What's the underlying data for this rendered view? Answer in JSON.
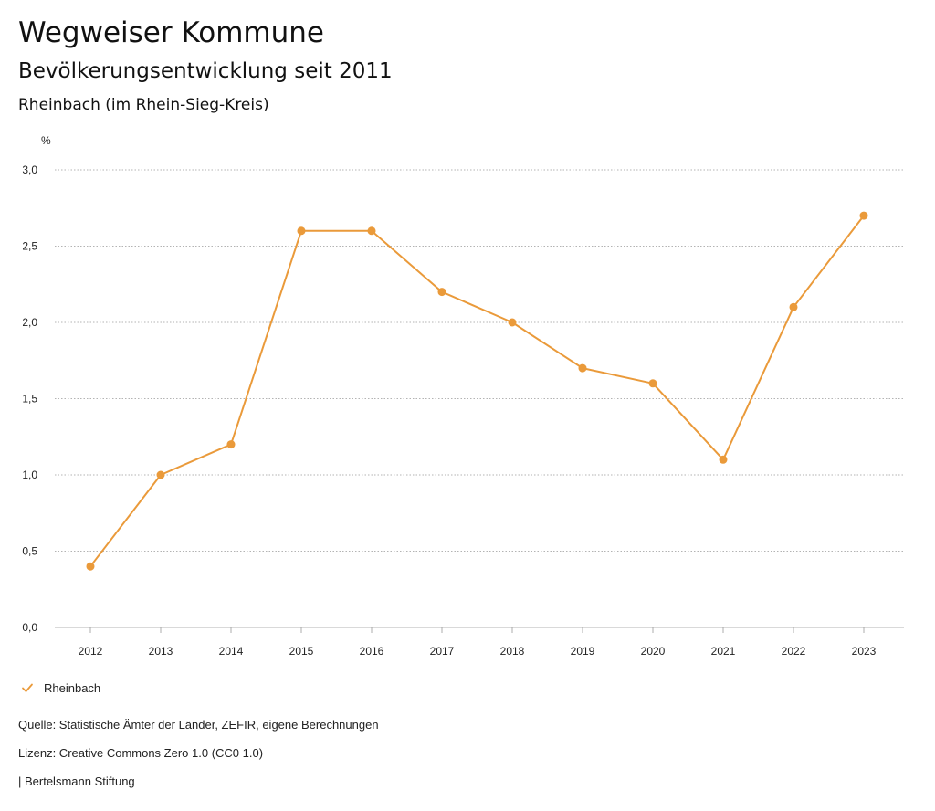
{
  "header": {
    "title": "Wegweiser Kommune",
    "subtitle": "Bevölkerungsentwicklung seit 2011",
    "region": "Rheinbach (im Rhein-Sieg-Kreis)"
  },
  "chart_data": {
    "type": "line",
    "ylabel": "%",
    "ylim": [
      0,
      3.0
    ],
    "yticks": [
      0,
      0.5,
      1.0,
      1.5,
      2.0,
      2.5,
      3.0
    ],
    "ytick_labels": [
      "0,0",
      "0,5",
      "1,0",
      "1,5",
      "2,0",
      "2,5",
      "3,0"
    ],
    "grid": true,
    "categories": [
      "2012",
      "2013",
      "2014",
      "2015",
      "2016",
      "2017",
      "2018",
      "2019",
      "2020",
      "2021",
      "2022",
      "2023"
    ],
    "series": [
      {
        "name": "Rheinbach",
        "color": "#ea9a3a",
        "values": [
          0.4,
          1.0,
          1.2,
          2.6,
          2.6,
          2.2,
          2.0,
          1.7,
          1.6,
          1.1,
          2.1,
          2.7
        ]
      }
    ],
    "legend_position": "bottom-left"
  },
  "legend": {
    "label": "Rheinbach",
    "icon": "check-icon",
    "color": "#ea9a3a"
  },
  "footer": {
    "source": "Quelle: Statistische Ämter der Länder, ZEFIR, eigene Berechnungen",
    "license": "Lizenz: Creative Commons Zero 1.0 (CC0 1.0)",
    "publisher": "| Bertelsmann Stiftung"
  }
}
